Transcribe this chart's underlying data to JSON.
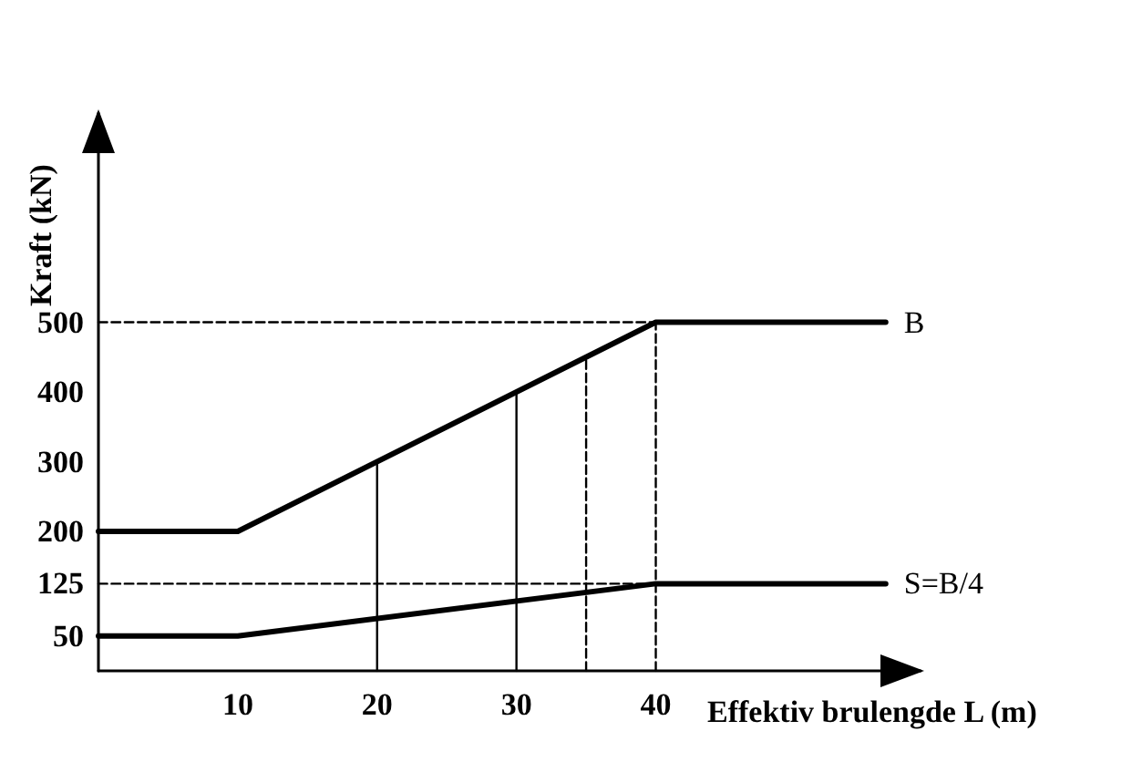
{
  "chart_data": {
    "type": "line",
    "xlabel": "Effektiv brulengde L (m)",
    "ylabel": "Kraft (kN)",
    "xlim": [
      0,
      59
    ],
    "ylim": [
      0,
      800
    ],
    "xticks": [
      10,
      20,
      30,
      40
    ],
    "yticks": [
      50,
      125,
      200,
      300,
      400,
      500
    ],
    "grid": false,
    "legend": false,
    "marker": "none",
    "series": [
      {
        "name": "B",
        "color": "#000000",
        "x": [
          0,
          10,
          40,
          56.5
        ],
        "values": [
          200,
          200,
          500,
          500
        ]
      },
      {
        "name": "S=B/4",
        "color": "#000000",
        "x": [
          0,
          10,
          40,
          56.5
        ],
        "values": [
          50,
          50,
          125,
          125
        ]
      },
      {
        "color": "#000000",
        "x": [
          20,
          20
        ],
        "values": [
          0,
          300
        ],
        "line_style": "solid"
      },
      {
        "color": "#000000",
        "x": [
          30,
          30
        ],
        "values": [
          0,
          400
        ],
        "line_style": "solid"
      },
      {
        "color": "#000000",
        "x": [
          35,
          35
        ],
        "values": [
          0,
          450
        ],
        "line_style": "dashed"
      },
      {
        "color": "#000000",
        "x": [
          40,
          40
        ],
        "values": [
          0,
          500
        ],
        "line_style": "dashed"
      },
      {
        "color": "#000000",
        "x": [
          0,
          40
        ],
        "values": [
          500,
          500
        ],
        "line_style": "dashed"
      },
      {
        "color": "#000000",
        "x": [
          0,
          40
        ],
        "values": [
          125,
          125
        ],
        "line_style": "dashed"
      }
    ]
  }
}
